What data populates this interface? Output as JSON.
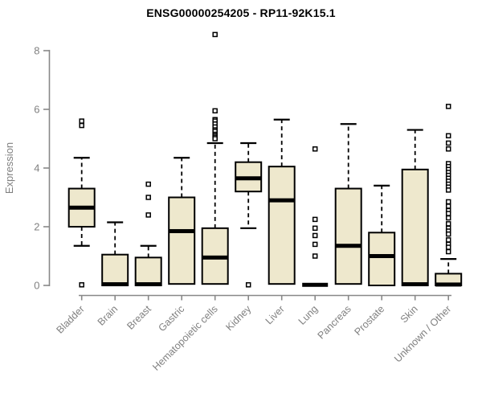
{
  "chart_data": {
    "type": "boxplot",
    "title": "ENSG00000254205 - RP11-92K15.1",
    "ylabel": "Expression",
    "xlabel": "",
    "ylim": [
      0,
      8.6
    ],
    "yticks": [
      0,
      2,
      4,
      6,
      8
    ],
    "grid": false,
    "legend": "none",
    "categories": [
      "Bladder",
      "Brain",
      "Breast",
      "Gastric",
      "Hematopoietic cells",
      "Kidney",
      "Liver",
      "Lung",
      "Pancreas",
      "Prostate",
      "Skin",
      "Unknown / Other"
    ],
    "series": [
      {
        "name": "Bladder",
        "whisker_low": 1.35,
        "q1": 2.0,
        "median": 2.65,
        "q3": 3.3,
        "whisker_high": 4.35,
        "outliers": [
          5.6,
          5.45,
          0.02
        ]
      },
      {
        "name": "Brain",
        "whisker_low": 0,
        "q1": 0,
        "median": 0.04,
        "q3": 1.05,
        "whisker_high": 2.15,
        "outliers": []
      },
      {
        "name": "Breast",
        "whisker_low": 0,
        "q1": 0,
        "median": 0.04,
        "q3": 0.95,
        "whisker_high": 1.35,
        "outliers": [
          3.45,
          3.0,
          2.4
        ]
      },
      {
        "name": "Gastric",
        "whisker_low": 0.05,
        "q1": 0.05,
        "median": 1.85,
        "q3": 3.0,
        "whisker_high": 4.35,
        "outliers": []
      },
      {
        "name": "Hematopoietic cells",
        "whisker_low": 0.05,
        "q1": 0.05,
        "median": 0.95,
        "q3": 1.95,
        "whisker_high": 4.85,
        "outliers": [
          8.55,
          5.95,
          5.65,
          5.6,
          5.5,
          5.4,
          5.3,
          5.25,
          5.15,
          5.1,
          5.05,
          5.0
        ]
      },
      {
        "name": "Kidney",
        "whisker_low": 1.95,
        "q1": 3.2,
        "median": 3.65,
        "q3": 4.2,
        "whisker_high": 4.85,
        "outliers": [
          0.02
        ]
      },
      {
        "name": "Liver",
        "whisker_low": 0.05,
        "q1": 0.05,
        "median": 2.9,
        "q3": 4.05,
        "whisker_high": 5.65,
        "outliers": []
      },
      {
        "name": "Lung",
        "whisker_low": 0.02,
        "q1": 0.02,
        "median": 0.02,
        "q3": 0.02,
        "whisker_high": 0.02,
        "outliers": [
          4.65,
          2.25,
          1.95,
          1.7,
          1.4,
          1.0
        ]
      },
      {
        "name": "Pancreas",
        "whisker_low": 0.05,
        "q1": 0.05,
        "median": 1.35,
        "q3": 3.3,
        "whisker_high": 5.5,
        "outliers": []
      },
      {
        "name": "Prostate",
        "whisker_low": 0,
        "q1": 0,
        "median": 1.0,
        "q3": 1.8,
        "whisker_high": 3.4,
        "outliers": []
      },
      {
        "name": "Skin",
        "whisker_low": 0,
        "q1": 0,
        "median": 0.04,
        "q3": 3.95,
        "whisker_high": 5.3,
        "outliers": []
      },
      {
        "name": "Unknown / Other",
        "whisker_low": 0,
        "q1": 0,
        "median": 0.03,
        "q3": 0.4,
        "whisker_high": 0.9,
        "outliers": [
          6.1,
          5.1,
          4.85,
          4.65,
          4.15,
          4.05,
          3.95,
          3.85,
          3.75,
          3.65,
          3.55,
          3.45,
          3.35,
          3.25,
          2.85,
          2.7,
          2.55,
          2.45,
          2.3,
          2.1,
          1.95,
          1.85,
          1.75,
          1.55,
          1.4,
          1.3,
          1.15
        ]
      }
    ],
    "colors": {
      "box_fill": "#EEE8CD",
      "box_stroke": "#000000",
      "median": "#000000",
      "whisker": "#000000",
      "outlier_stroke": "#000000",
      "outlier_fill": "#ffffff",
      "axis": "#888888",
      "tick_text": "#808080",
      "title_text": "#000000"
    }
  }
}
